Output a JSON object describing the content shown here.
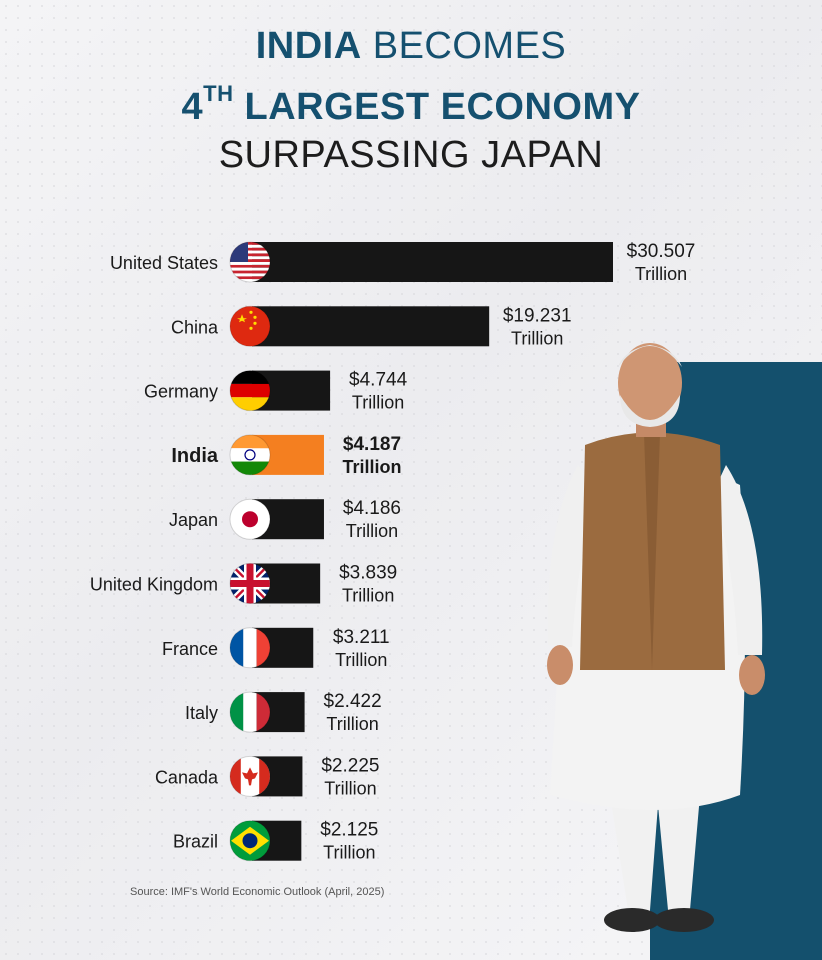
{
  "title": {
    "line1_bold": "INDIA",
    "line1_rest": " BECOMES",
    "line2_prefix": "4",
    "line2_sup": "TH",
    "line2_rest": " LARGEST ECONOMY",
    "line3": "SURPASSING JAPAN"
  },
  "source": "Source: IMF's World Economic Outlook (April, 2025)",
  "colors": {
    "bar": "#161616",
    "india_bar": "#f47f20",
    "panel": "#14506d",
    "title_blue": "#15506f"
  },
  "chart_data": {
    "type": "bar",
    "orientation": "horizontal",
    "unit_label": "Trillion",
    "categories": [
      "United States",
      "China",
      "Germany",
      "India",
      "Japan",
      "United Kingdom",
      "France",
      "Italy",
      "Canada",
      "Brazil"
    ],
    "values": [
      30.507,
      19.231,
      4.744,
      4.187,
      4.186,
      3.839,
      3.211,
      2.422,
      2.225,
      2.125
    ],
    "value_labels": [
      "$30.507",
      "$19.231",
      "$4.744",
      "$4.187",
      "$4.186",
      "$3.839",
      "$3.211",
      "$2.422",
      "$2.225",
      "$2.125"
    ],
    "flag_icons": [
      "us-flag-icon",
      "china-flag-icon",
      "germany-flag-icon",
      "india-flag-icon",
      "japan-flag-icon",
      "uk-flag-icon",
      "france-flag-icon",
      "italy-flag-icon",
      "canada-flag-icon",
      "brazil-flag-icon"
    ],
    "highlight": "India"
  }
}
